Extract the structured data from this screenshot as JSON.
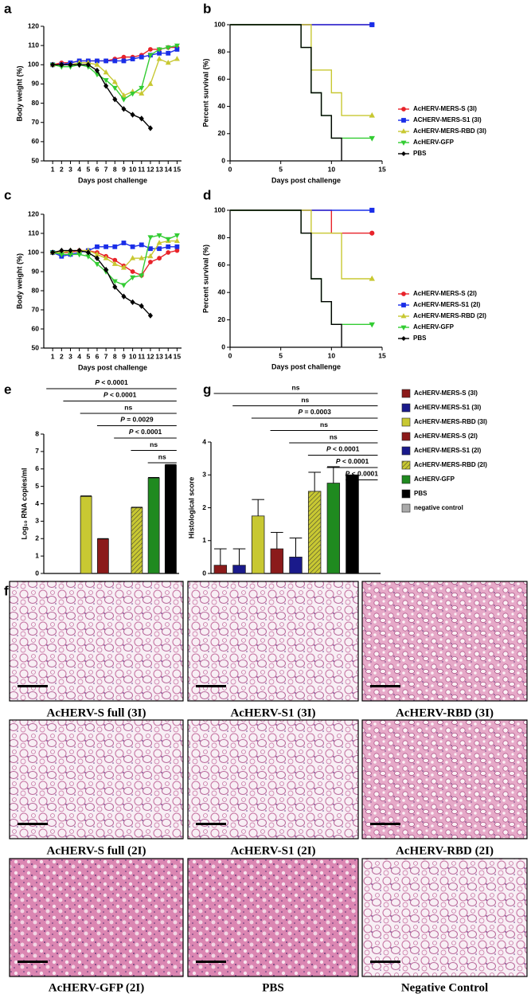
{
  "chart_data": [
    {
      "type": "line",
      "label": "a",
      "xlabel": "Days post challenge",
      "ylabel": "Body weight (%)",
      "x": [
        1,
        2,
        3,
        4,
        5,
        6,
        7,
        8,
        9,
        10,
        11,
        12,
        13,
        14,
        15
      ],
      "xlim": [
        0,
        15.5
      ],
      "xticks": [
        1,
        2,
        3,
        4,
        5,
        6,
        7,
        8,
        9,
        10,
        11,
        12,
        13,
        14,
        15
      ],
      "ylim": [
        50,
        120
      ],
      "yticks": [
        50,
        60,
        70,
        80,
        90,
        100,
        110,
        120
      ],
      "series": [
        {
          "color": "#e8232a",
          "marker": "circle",
          "values": [
            100,
            101,
            101,
            102,
            102,
            102,
            102,
            103,
            104,
            104,
            105,
            108,
            108,
            109,
            109
          ]
        },
        {
          "color": "#1a2ee8",
          "marker": "square",
          "values": [
            100,
            100,
            101,
            102,
            102,
            102,
            102,
            102,
            102,
            103,
            104,
            105,
            106,
            106,
            108
          ]
        },
        {
          "color": "#c8c832",
          "marker": "triangle",
          "values": [
            100,
            100,
            100,
            101,
            101,
            100,
            96,
            91,
            84,
            86,
            85,
            90,
            103,
            101,
            103
          ]
        },
        {
          "color": "#33cc33",
          "marker": "triangle-down",
          "values": [
            100,
            99,
            99,
            100,
            99,
            95,
            92,
            88,
            82,
            85,
            88,
            105,
            108,
            109,
            110
          ]
        },
        {
          "color": "#000000",
          "marker": "diamond",
          "values": [
            100,
            100,
            100,
            100,
            100,
            97,
            89,
            82,
            77,
            74,
            72,
            67,
            null,
            null,
            null
          ]
        }
      ]
    },
    {
      "type": "survival",
      "label": "b",
      "xlabel": "Days post challenge",
      "ylabel": "Percent survival (%)",
      "xlim": [
        0,
        15
      ],
      "xticks": [
        0,
        5,
        10,
        15
      ],
      "ylim": [
        0,
        100
      ],
      "yticks": [
        0,
        20,
        40,
        60,
        80,
        100
      ],
      "legend": "right",
      "series": [
        {
          "name": "AcHERV-MERS-S (3I)",
          "color": "#e8232a",
          "marker": "circle",
          "x": [
            0,
            14
          ],
          "values": [
            100,
            100
          ]
        },
        {
          "name": "ACHERV-MERS-S1 (3I)",
          "color": "#1a2ee8",
          "marker": "square",
          "x": [
            0,
            14
          ],
          "values": [
            100,
            100
          ]
        },
        {
          "name": "AcHERV-MERS-RBD (3I)",
          "color": "#c8c832",
          "marker": "triangle",
          "x": [
            0,
            8,
            10,
            11,
            14
          ],
          "values": [
            100,
            66.7,
            50,
            33.3,
            33.3
          ]
        },
        {
          "name": "AcHERV-GFP",
          "color": "#33cc33",
          "marker": "triangle-down",
          "x": [
            0,
            7,
            8,
            9,
            10,
            14
          ],
          "values": [
            100,
            83.3,
            50,
            33.3,
            16.7,
            16.7
          ]
        },
        {
          "name": "PBS",
          "color": "#000000",
          "x": [
            0,
            7,
            8,
            9,
            10,
            11
          ],
          "values": [
            100,
            83.3,
            50,
            33.3,
            16.7,
            0
          ]
        }
      ]
    },
    {
      "type": "line",
      "label": "c",
      "xlabel": "Days post challenge",
      "ylabel": "Body weight (%)",
      "x": [
        1,
        2,
        3,
        4,
        5,
        6,
        7,
        8,
        9,
        10,
        11,
        12,
        13,
        14,
        15
      ],
      "xlim": [
        0,
        15.5
      ],
      "xticks": [
        1,
        2,
        3,
        4,
        5,
        6,
        7,
        8,
        9,
        10,
        11,
        12,
        13,
        14,
        15
      ],
      "ylim": [
        50,
        120
      ],
      "yticks": [
        50,
        60,
        70,
        80,
        90,
        100,
        110,
        120
      ],
      "series": [
        {
          "color": "#e8232a",
          "marker": "circle",
          "values": [
            100,
            100,
            100,
            101,
            101,
            100,
            98,
            96,
            93,
            90,
            88,
            95,
            97,
            100,
            101
          ]
        },
        {
          "color": "#1a2ee8",
          "marker": "square",
          "values": [
            100,
            98,
            99,
            100,
            101,
            103,
            103,
            103,
            105,
            103,
            104,
            102,
            102,
            103,
            103
          ]
        },
        {
          "color": "#c8c832",
          "marker": "triangle",
          "values": [
            100,
            100,
            101,
            101,
            101,
            99,
            97,
            94,
            92,
            97,
            97,
            98,
            105,
            106,
            106
          ]
        },
        {
          "color": "#33cc33",
          "marker": "triangle-down",
          "values": [
            100,
            99,
            99,
            99,
            98,
            94,
            90,
            85,
            83,
            87,
            88,
            108,
            109,
            107,
            109
          ]
        },
        {
          "color": "#000000",
          "marker": "diamond",
          "values": [
            100,
            101,
            101,
            101,
            100,
            97,
            91,
            82,
            77,
            74,
            72,
            67,
            null,
            null,
            null
          ]
        }
      ]
    },
    {
      "type": "survival",
      "label": "d",
      "xlabel": "Days post challenge",
      "ylabel": "Percent survival (%)",
      "xlim": [
        0,
        15
      ],
      "xticks": [
        0,
        5,
        10,
        15
      ],
      "ylim": [
        0,
        100
      ],
      "yticks": [
        0,
        20,
        40,
        60,
        80,
        100
      ],
      "legend": "right",
      "series": [
        {
          "name": "AcHERV-MERS-S (2I)",
          "color": "#e8232a",
          "marker": "circle",
          "x": [
            0,
            10,
            14
          ],
          "values": [
            100,
            83.3,
            83.3
          ]
        },
        {
          "name": "AcHERV-MERS-S1 (2I)",
          "color": "#1a2ee8",
          "marker": "square",
          "x": [
            0,
            14
          ],
          "values": [
            100,
            100
          ]
        },
        {
          "name": "AcHERV-MERS-RBD (2I)",
          "color": "#c8c832",
          "marker": "triangle",
          "x": [
            0,
            8,
            11,
            14
          ],
          "values": [
            100,
            83.3,
            50,
            50
          ]
        },
        {
          "name": "AcHERV-GFP",
          "color": "#33cc33",
          "marker": "triangle-down",
          "x": [
            0,
            7,
            8,
            9,
            10,
            14
          ],
          "values": [
            100,
            83.3,
            50,
            33.3,
            16.7,
            16.7
          ]
        },
        {
          "name": "PBS",
          "color": "#000000",
          "x": [
            0,
            7,
            8,
            9,
            10,
            11
          ],
          "values": [
            100,
            83.3,
            50,
            33.3,
            16.7,
            0
          ]
        }
      ]
    },
    {
      "type": "bar",
      "label": "e",
      "ylabel": "Log₁₀ RNA copies/ml",
      "ylim": [
        0,
        8
      ],
      "yticks": [
        0,
        1,
        2,
        3,
        4,
        5,
        6,
        7,
        8
      ],
      "values": [
        null,
        null,
        4.42,
        1.98,
        null,
        3.78,
        5.48,
        6.22
      ],
      "errors": [
        null,
        null,
        0.03,
        0.02,
        null,
        0.02,
        0.03,
        0.03
      ],
      "colors": [
        "#8b1a1a",
        "#1a1a8b",
        "#c8c832",
        "#8b1a1a",
        "#1a1a8b",
        "#c8c832",
        "#1f8a1f",
        "#000000"
      ],
      "hatched": [
        false,
        false,
        false,
        false,
        false,
        true,
        false,
        false
      ],
      "comparisons": [
        {
          "label": "P < 0.0001",
          "from": 0,
          "to": 7
        },
        {
          "label": "P < 0.0001",
          "from": 1,
          "to": 7
        },
        {
          "label": "ns",
          "from": 2,
          "to": 7
        },
        {
          "label": "P = 0.0029",
          "from": 3,
          "to": 7
        },
        {
          "label": "P < 0.0001",
          "from": 4,
          "to": 7
        },
        {
          "label": "ns",
          "from": 5,
          "to": 7
        },
        {
          "label": "ns",
          "from": 6,
          "to": 7
        }
      ]
    },
    {
      "type": "bar",
      "label": "g",
      "ylabel": "Histological score",
      "ylim": [
        0,
        4
      ],
      "yticks": [
        0,
        1,
        2,
        3,
        4
      ],
      "legend": "right",
      "categories": [
        "AcHERV-MERS-S (3I)",
        "AcHERV-MERS-S1 (3I)",
        "AcHERV-MERS-RBD (3I)",
        "AcHERV-MERS-S (2I)",
        "AcHERV-MERS-S1 (2I)",
        "AcHERV-MERS-RBD (2I)",
        "AcHERV-GFP",
        "PBS",
        "negative control"
      ],
      "values": [
        0.25,
        0.25,
        1.75,
        0.75,
        0.5,
        2.5,
        2.75,
        3.0,
        0
      ],
      "errors": [
        0.5,
        0.5,
        0.5,
        0.5,
        0.58,
        0.58,
        0.5,
        0,
        0
      ],
      "colors": [
        "#8b1a1a",
        "#1a1a8b",
        "#c8c832",
        "#8b1a1a",
        "#1a1a8b",
        "#c8c832",
        "#1f8a1f",
        "#000000",
        "#aaaaaa"
      ],
      "hatched": [
        false,
        false,
        false,
        false,
        false,
        true,
        false,
        false,
        false
      ],
      "comparisons": [
        {
          "label": "ns",
          "from": 0,
          "to": 8
        },
        {
          "label": "ns",
          "from": 1,
          "to": 8
        },
        {
          "label": "P = 0.0003",
          "from": 2,
          "to": 8
        },
        {
          "label": "ns",
          "from": 3,
          "to": 8
        },
        {
          "label": "ns",
          "from": 4,
          "to": 8
        },
        {
          "label": "P < 0.0001",
          "from": 5,
          "to": 8
        },
        {
          "label": "P < 0.0001",
          "from": 6,
          "to": 8
        },
        {
          "label": "P < 0.0001",
          "from": 7,
          "to": 8
        }
      ]
    }
  ],
  "histology": {
    "label": "f",
    "panels": [
      "AcHERV-S full (3I)",
      "AcHERV-S1 (3I)",
      "AcHERV-RBD (3I)",
      "AcHERV-S full (2I)",
      "AcHERV-S1 (2I)",
      "AcHERV-RBD (2I)",
      "AcHERV-GFP (2I)",
      "PBS",
      "Negative Control"
    ]
  }
}
